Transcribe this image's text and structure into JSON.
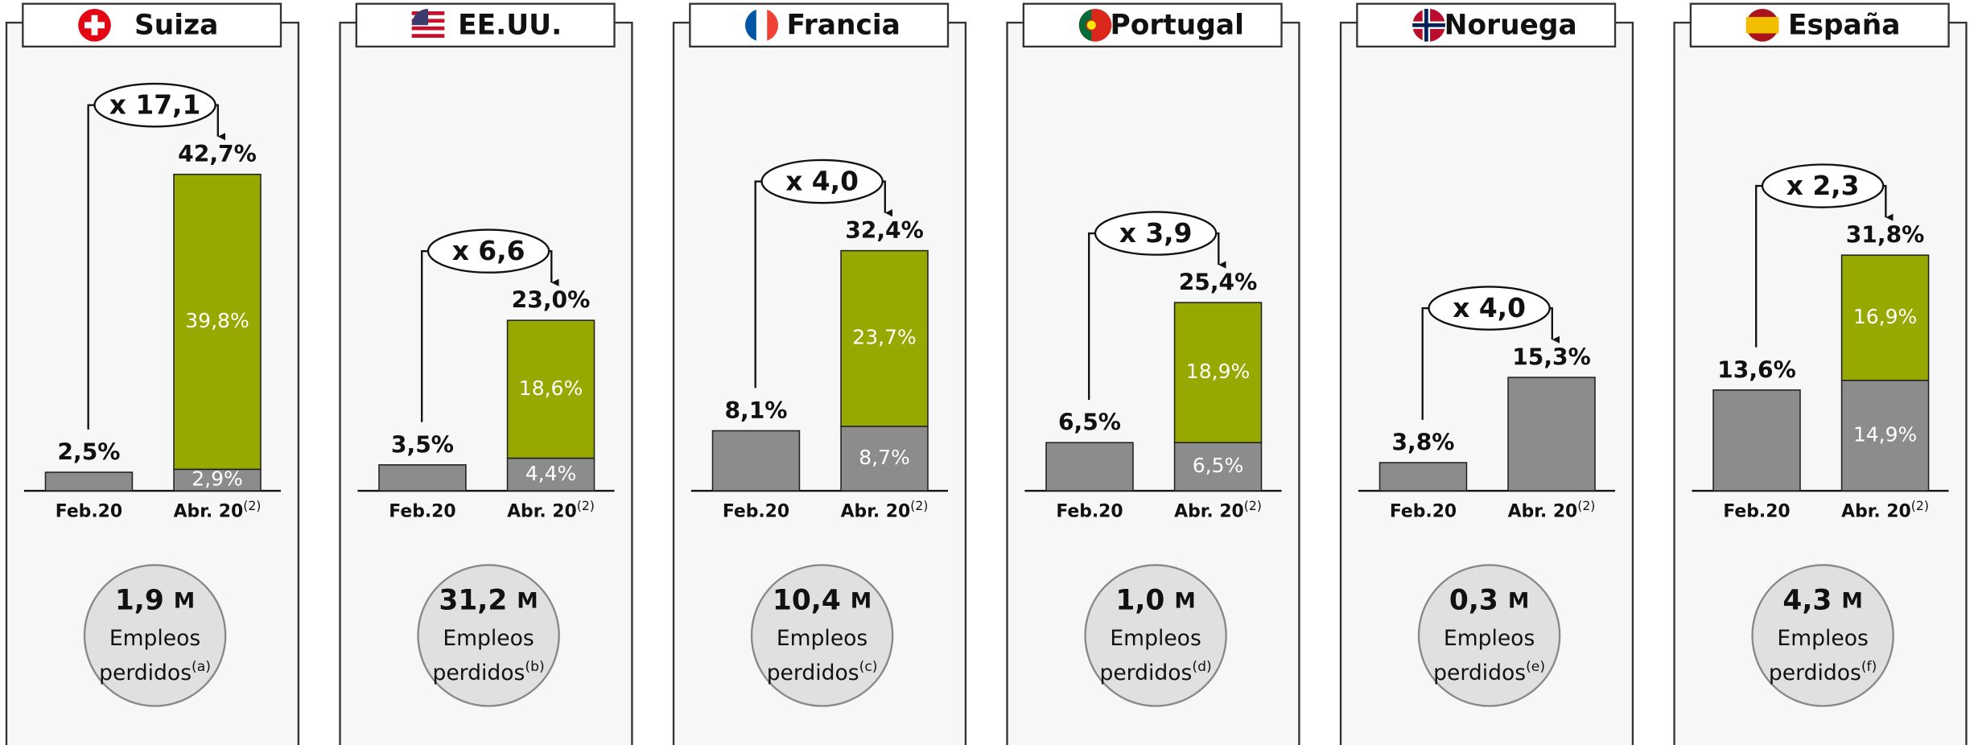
{
  "chart_data": [
    {
      "type": "bar",
      "title": "Suiza",
      "categories": [
        "Feb.20",
        "Abr. 20"
      ],
      "category_notes": [
        null,
        "(2)"
      ],
      "ylim": [
        0,
        45
      ],
      "series": [
        {
          "color": "#8c8c8c",
          "values": [
            2.5,
            2.9
          ],
          "value_labels": [
            "2,5%",
            "2,9%"
          ]
        },
        {
          "color": "#97a800",
          "values": [
            null,
            39.8
          ],
          "value_labels": [
            null,
            "39,8%"
          ]
        }
      ],
      "total_value": 42.7,
      "total_label": "42,7%",
      "multiplier": 17.1,
      "multiplier_label": "x 17,1",
      "jobs_lost": 1.9,
      "jobs_lost_label": "1,9",
      "jobs_unit": "M",
      "jobs_text": [
        "Empleos",
        "perdidos"
      ],
      "jobs_note": "(a)"
    },
    {
      "type": "bar",
      "title": "EE.UU.",
      "categories": [
        "Feb.20",
        "Abr. 20"
      ],
      "category_notes": [
        null,
        "(2)"
      ],
      "ylim": [
        0,
        45
      ],
      "series": [
        {
          "color": "#8c8c8c",
          "values": [
            3.5,
            4.4
          ],
          "value_labels": [
            "3,5%",
            "4,4%"
          ]
        },
        {
          "color": "#97a800",
          "values": [
            null,
            18.6
          ],
          "value_labels": [
            null,
            "18,6%"
          ]
        }
      ],
      "total_value": 23.0,
      "total_label": "23,0%",
      "multiplier": 6.6,
      "multiplier_label": "x 6,6",
      "jobs_lost": 31.2,
      "jobs_lost_label": "31,2",
      "jobs_unit": "M",
      "jobs_text": [
        "Empleos",
        "perdidos"
      ],
      "jobs_note": "(b)"
    },
    {
      "type": "bar",
      "title": "Francia",
      "categories": [
        "Feb.20",
        "Abr. 20"
      ],
      "category_notes": [
        null,
        "(2)"
      ],
      "ylim": [
        0,
        45
      ],
      "series": [
        {
          "color": "#8c8c8c",
          "values": [
            8.1,
            8.7
          ],
          "value_labels": [
            "8,1%",
            "8,7%"
          ]
        },
        {
          "color": "#97a800",
          "values": [
            null,
            23.7
          ],
          "value_labels": [
            null,
            "23,7%"
          ]
        }
      ],
      "total_value": 32.4,
      "total_label": "32,4%",
      "multiplier": 4.0,
      "multiplier_label": "x 4,0",
      "jobs_lost": 10.4,
      "jobs_lost_label": "10,4",
      "jobs_unit": "M",
      "jobs_text": [
        "Empleos",
        "perdidos"
      ],
      "jobs_note": "(c)"
    },
    {
      "type": "bar",
      "title": "Portugal",
      "categories": [
        "Feb.20",
        "Abr. 20"
      ],
      "category_notes": [
        null,
        "(2)"
      ],
      "ylim": [
        0,
        45
      ],
      "series": [
        {
          "color": "#8c8c8c",
          "values": [
            6.5,
            6.5
          ],
          "value_labels": [
            "6,5%",
            "6,5%"
          ]
        },
        {
          "color": "#97a800",
          "values": [
            null,
            18.9
          ],
          "value_labels": [
            null,
            "18,9%"
          ]
        }
      ],
      "total_value": 25.4,
      "total_label": "25,4%",
      "multiplier": 3.9,
      "multiplier_label": "x 3,9",
      "jobs_lost": 1.0,
      "jobs_lost_label": "1,0",
      "jobs_unit": "M",
      "jobs_text": [
        "Empleos",
        "perdidos"
      ],
      "jobs_note": "(d)"
    },
    {
      "type": "bar",
      "title": "Noruega",
      "categories": [
        "Feb.20",
        "Abr. 20"
      ],
      "category_notes": [
        null,
        "(2)"
      ],
      "ylim": [
        0,
        45
      ],
      "series": [
        {
          "color": "#8c8c8c",
          "values": [
            3.8,
            15.3
          ],
          "value_labels": [
            "3,8%",
            "15,3%"
          ]
        },
        {
          "color": "#97a800",
          "values": [
            null,
            null
          ],
          "value_labels": [
            null,
            null
          ]
        }
      ],
      "multiplier": 4.0,
      "multiplier_label": "x 4,0",
      "jobs_lost": 0.3,
      "jobs_lost_label": "0,3",
      "jobs_unit": "M",
      "jobs_text": [
        "Empleos",
        "perdidos"
      ],
      "jobs_note": "(e)"
    },
    {
      "type": "bar",
      "title": "España",
      "categories": [
        "Feb.20",
        "Abr. 20"
      ],
      "category_notes": [
        null,
        "(2)"
      ],
      "ylim": [
        0,
        45
      ],
      "series": [
        {
          "color": "#8c8c8c",
          "values": [
            13.6,
            14.9
          ],
          "value_labels": [
            "13,6%",
            "14,9%"
          ]
        },
        {
          "color": "#97a800",
          "values": [
            null,
            16.9
          ],
          "value_labels": [
            null,
            "16,9%"
          ]
        }
      ],
      "total_value": 31.8,
      "total_label": "31,8%",
      "multiplier": 2.3,
      "multiplier_label": "x 2,3",
      "jobs_lost": 4.3,
      "jobs_lost_label": "4,3",
      "jobs_unit": "M",
      "jobs_text": [
        "Empleos",
        "perdidos"
      ],
      "jobs_note": "(f)"
    }
  ]
}
